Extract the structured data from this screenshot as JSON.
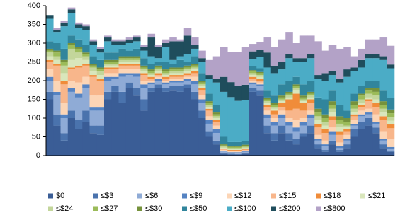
{
  "chart_data": {
    "type": "stacked_bar",
    "categories": [
      null,
      null,
      null,
      null,
      null,
      null,
      null,
      null,
      null,
      null,
      null,
      null,
      null,
      null,
      null,
      null,
      null,
      null,
      null,
      null,
      null,
      null,
      null,
      null,
      null,
      null,
      null,
      null,
      null,
      null,
      null,
      null,
      null,
      null,
      null,
      null,
      null,
      null,
      null,
      null,
      null,
      null,
      null,
      null,
      null,
      null,
      null,
      null
    ],
    "ylim": [
      0,
      400
    ],
    "yticks": [
      0,
      50,
      100,
      150,
      200,
      250,
      300,
      350,
      400
    ],
    "series": [
      {
        "name": "$0",
        "color": "#3a5d96",
        "values": [
          150,
          80,
          40,
          100,
          70,
          90,
          60,
          55,
          150,
          170,
          140,
          180,
          160,
          120,
          170,
          180,
          170,
          175,
          170,
          180,
          150,
          100,
          50,
          30,
          5,
          3,
          2,
          5,
          170,
          160,
          60,
          40,
          60,
          40,
          30,
          50,
          60,
          20,
          10,
          30,
          10,
          20,
          50,
          70,
          80,
          60,
          20,
          10
        ]
      },
      {
        "name": "≤$3",
        "color": "#4a73ad",
        "values": [
          20,
          30,
          20,
          20,
          25,
          30,
          20,
          25,
          20,
          15,
          30,
          15,
          20,
          30,
          10,
          10,
          10,
          10,
          15,
          10,
          20,
          20,
          15,
          10,
          3,
          2,
          2,
          3,
          10,
          15,
          20,
          20,
          20,
          20,
          15,
          10,
          20,
          10,
          5,
          10,
          5,
          10,
          20,
          20,
          20,
          15,
          10,
          3
        ]
      },
      {
        "name": "≤$6",
        "color": "#8fabd6",
        "values": [
          30,
          50,
          40,
          50,
          60,
          60,
          40,
          40,
          30,
          20,
          40,
          20,
          30,
          30,
          10,
          10,
          10,
          10,
          10,
          10,
          20,
          20,
          20,
          20,
          3,
          2,
          3,
          2,
          10,
          10,
          20,
          20,
          20,
          20,
          20,
          20,
          20,
          10,
          10,
          15,
          5,
          10,
          10,
          15,
          10,
          10,
          10,
          5
        ]
      },
      {
        "name": "≤$9",
        "color": "#5583c2",
        "values": [
          10,
          10,
          10,
          10,
          10,
          10,
          10,
          10,
          10,
          5,
          10,
          5,
          10,
          10,
          5,
          5,
          5,
          5,
          5,
          5,
          10,
          10,
          10,
          10,
          2,
          2,
          2,
          2,
          5,
          5,
          10,
          10,
          10,
          10,
          10,
          10,
          10,
          5,
          5,
          10,
          5,
          5,
          5,
          5,
          5,
          5,
          5,
          5
        ]
      },
      {
        "name": "≤$12",
        "color": "#fcd5b6",
        "values": [
          20,
          30,
          30,
          20,
          30,
          20,
          30,
          30,
          10,
          10,
          10,
          10,
          10,
          10,
          5,
          5,
          5,
          5,
          5,
          5,
          10,
          10,
          10,
          10,
          2,
          2,
          2,
          2,
          5,
          5,
          10,
          10,
          10,
          10,
          20,
          10,
          10,
          10,
          10,
          10,
          10,
          10,
          10,
          10,
          10,
          20,
          20,
          20
        ]
      },
      {
        "name": "≤$15",
        "color": "#f8b68b",
        "values": [
          20,
          40,
          50,
          30,
          40,
          30,
          50,
          40,
          10,
          10,
          10,
          10,
          10,
          15,
          5,
          5,
          5,
          5,
          5,
          5,
          10,
          15,
          15,
          10,
          2,
          2,
          2,
          2,
          5,
          5,
          10,
          10,
          10,
          20,
          30,
          20,
          20,
          20,
          20,
          20,
          20,
          10,
          10,
          10,
          20,
          20,
          30,
          30
        ]
      },
      {
        "name": "≤$18",
        "color": "#f08c3a",
        "values": [
          5,
          5,
          10,
          5,
          5,
          5,
          5,
          5,
          5,
          5,
          5,
          5,
          5,
          5,
          5,
          5,
          5,
          5,
          5,
          5,
          5,
          5,
          5,
          5,
          2,
          2,
          2,
          2,
          5,
          5,
          5,
          10,
          10,
          30,
          40,
          20,
          10,
          10,
          10,
          10,
          10,
          5,
          5,
          5,
          5,
          10,
          10,
          10
        ]
      },
      {
        "name": "≤$21",
        "color": "#d9e6bb",
        "values": [
          10,
          10,
          20,
          20,
          20,
          10,
          10,
          10,
          5,
          5,
          5,
          5,
          5,
          5,
          5,
          5,
          5,
          5,
          5,
          5,
          5,
          5,
          5,
          5,
          2,
          2,
          2,
          2,
          5,
          5,
          5,
          5,
          5,
          5,
          10,
          5,
          5,
          10,
          10,
          10,
          10,
          5,
          5,
          5,
          5,
          10,
          10,
          10
        ]
      },
      {
        "name": "≤$24",
        "color": "#c3d69b",
        "values": [
          10,
          10,
          20,
          30,
          15,
          10,
          10,
          10,
          5,
          5,
          5,
          5,
          5,
          5,
          5,
          5,
          5,
          5,
          5,
          5,
          5,
          5,
          5,
          5,
          3,
          3,
          3,
          3,
          5,
          5,
          5,
          5,
          5,
          5,
          5,
          5,
          5,
          10,
          10,
          10,
          10,
          5,
          10,
          10,
          10,
          10,
          10,
          10
        ]
      },
      {
        "name": "≤$27",
        "color": "#9bbb59",
        "values": [
          5,
          10,
          10,
          10,
          10,
          5,
          5,
          5,
          5,
          5,
          5,
          5,
          5,
          5,
          5,
          5,
          5,
          5,
          5,
          5,
          5,
          5,
          5,
          5,
          3,
          3,
          3,
          3,
          5,
          5,
          5,
          5,
          5,
          5,
          5,
          5,
          5,
          10,
          10,
          10,
          10,
          10,
          10,
          10,
          10,
          10,
          10,
          10
        ]
      },
      {
        "name": "≤$30",
        "color": "#76923c",
        "values": [
          5,
          5,
          5,
          5,
          5,
          5,
          5,
          5,
          5,
          5,
          5,
          5,
          5,
          5,
          5,
          5,
          5,
          5,
          5,
          5,
          5,
          5,
          5,
          5,
          3,
          3,
          3,
          3,
          3,
          3,
          5,
          5,
          5,
          5,
          5,
          5,
          5,
          10,
          10,
          10,
          10,
          10,
          10,
          5,
          5,
          10,
          10,
          10
        ]
      },
      {
        "name": "≤$50",
        "color": "#31859c",
        "values": [
          20,
          20,
          30,
          20,
          20,
          20,
          20,
          20,
          20,
          20,
          20,
          15,
          20,
          20,
          15,
          10,
          20,
          10,
          20,
          10,
          20,
          20,
          20,
          20,
          20,
          10,
          10,
          10,
          10,
          10,
          20,
          20,
          30,
          30,
          20,
          30,
          30,
          30,
          40,
          30,
          30,
          20,
          20,
          20,
          20,
          20,
          30,
          30
        ]
      },
      {
        "name": "≤$100",
        "color": "#4bacc6",
        "values": [
          60,
          30,
          60,
          60,
          30,
          40,
          30,
          20,
          30,
          20,
          10,
          20,
          20,
          20,
          20,
          10,
          40,
          10,
          10,
          20,
          20,
          30,
          40,
          60,
          120,
          120,
          110,
          110,
          20,
          30,
          60,
          60,
          40,
          60,
          40,
          60,
          60,
          50,
          50,
          40,
          60,
          90,
          60,
          50,
          60,
          60,
          80,
          80
        ]
      },
      {
        "name": "≤$200",
        "color": "#1f4d5c",
        "values": [
          10,
          5,
          10,
          10,
          10,
          10,
          10,
          10,
          10,
          10,
          10,
          10,
          10,
          10,
          50,
          30,
          10,
          50,
          40,
          50,
          10,
          10,
          10,
          10,
          40,
          40,
          40,
          40,
          20,
          20,
          40,
          20,
          20,
          10,
          10,
          10,
          10,
          10,
          20,
          10,
          10,
          20,
          10,
          20,
          10,
          10,
          10,
          10
        ]
      },
      {
        "name": "≤$800",
        "color": "#b3a2c7",
        "values": [
          0,
          5,
          5,
          5,
          5,
          5,
          5,
          5,
          5,
          5,
          5,
          5,
          5,
          5,
          10,
          5,
          10,
          10,
          5,
          20,
          20,
          20,
          40,
          60,
          80,
          80,
          90,
          100,
          20,
          20,
          40,
          50,
          60,
          60,
          40,
          60,
          50,
          90,
          60,
          70,
          80,
          60,
          30,
          30,
          40,
          40,
          50,
          50
        ]
      }
    ]
  }
}
